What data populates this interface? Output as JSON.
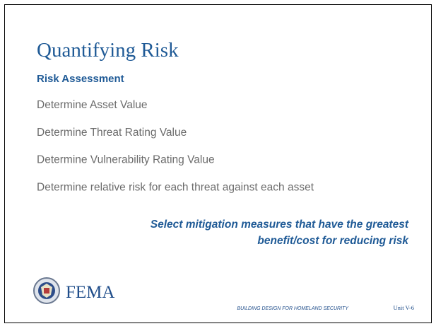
{
  "header": {
    "title": "Quantifying Risk",
    "subtitle": "Risk Assessment"
  },
  "items": [
    "Determine Asset Value",
    "Determine Threat Rating Value",
    "Determine Vulnerability Rating Value",
    "Determine relative risk for each threat against each asset"
  ],
  "callout": [
    "Select mitigation measures that have the greatest",
    "benefit/cost for reducing risk"
  ],
  "footer": {
    "logo": "FEMA",
    "course": "BUILDING DESIGN FOR HOMELAND SECURITY",
    "unit": "Unit V-6"
  }
}
